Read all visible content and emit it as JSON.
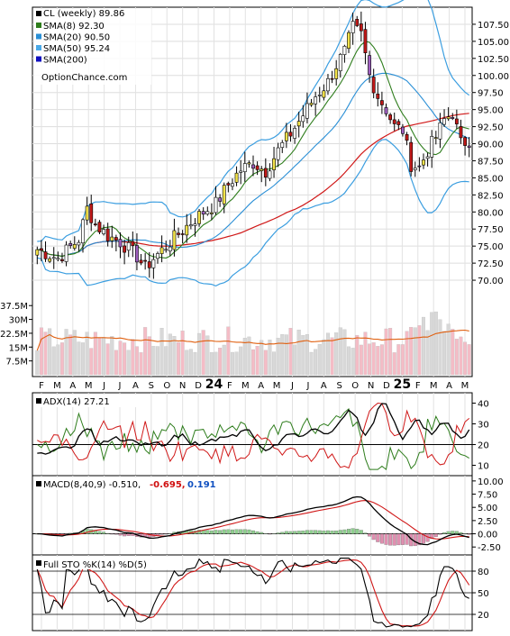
{
  "chart_data": [
    {
      "type": "candlestick",
      "panel": "price",
      "title": "CL (weekly) 89.86",
      "watermark": "OptionChance.com",
      "legend": [
        {
          "label": "SMA(8) 92.30",
          "color": "#2e7d1c"
        },
        {
          "label": "SMA(20) 90.50",
          "color": "#2a8fd6"
        },
        {
          "label": "SMA(50) 95.24",
          "color": "#4aa9e8"
        },
        {
          "label": "SMA(200)",
          "color": "#1010c0"
        }
      ],
      "y_ticks": [
        "107.50",
        "105.00",
        "102.50",
        "100.00",
        "97.50",
        "95.00",
        "92.50",
        "90.00",
        "87.50",
        "85.00",
        "82.50",
        "80.00",
        "77.50",
        "75.00",
        "72.50",
        "70.00"
      ],
      "ylim": [
        67.5,
        110
      ],
      "x_labels": [
        "F",
        "M",
        "A",
        "M",
        "J",
        "J",
        "A",
        "S",
        "O",
        "N",
        "D",
        "24",
        "F",
        "M",
        "A",
        "M",
        "J",
        "J",
        "A",
        "S",
        "O",
        "N",
        "D",
        "25",
        "F",
        "M",
        "A",
        "M"
      ],
      "close_path": [
        [
          0,
          74.5
        ],
        [
          5,
          73.2
        ],
        [
          10,
          76.0
        ],
        [
          12,
          80.5
        ],
        [
          14,
          78.2
        ],
        [
          17,
          76.5
        ],
        [
          20,
          75.6
        ],
        [
          24,
          73.5
        ],
        [
          26,
          71.8
        ],
        [
          28,
          73.2
        ],
        [
          31,
          75.0
        ],
        [
          34,
          76.8
        ],
        [
          37,
          78.5
        ],
        [
          40,
          80.0
        ],
        [
          43,
          81.2
        ],
        [
          46,
          84.0
        ],
        [
          49,
          86.2
        ],
        [
          52,
          87.2
        ],
        [
          55,
          86.0
        ],
        [
          58,
          89.0
        ],
        [
          61,
          91.5
        ],
        [
          64,
          94.2
        ],
        [
          67,
          97.0
        ],
        [
          70,
          99.0
        ],
        [
          72,
          101.5
        ],
        [
          74,
          103.5
        ],
        [
          76,
          107.0
        ],
        [
          78,
          106.0
        ],
        [
          80,
          100.0
        ],
        [
          82,
          97.0
        ],
        [
          84,
          95.0
        ],
        [
          86,
          92.5
        ],
        [
          88,
          92.0
        ],
        [
          90,
          87.0
        ],
        [
          92,
          86.5
        ],
        [
          94,
          89.0
        ],
        [
          96,
          91.0
        ],
        [
          98,
          93.5
        ],
        [
          100,
          94.5
        ],
        [
          102,
          90.0
        ],
        [
          104,
          90.5
        ]
      ],
      "volume_ticks": [
        "37.5M",
        "30M",
        "22.5M",
        "15M",
        "7.5M"
      ]
    },
    {
      "type": "line",
      "panel": "adx",
      "title": "ADX(14) 27.21",
      "y_ticks": [
        "40",
        "30",
        "20",
        "10"
      ],
      "ylim": [
        5,
        45
      ]
    },
    {
      "type": "line",
      "panel": "macd",
      "title": "MACD(8,40,9) -0.510,",
      "values": [
        "-0.695,",
        "0.191"
      ],
      "value_colors": [
        "#d01010",
        "#1050c0"
      ],
      "y_ticks": [
        "10.00",
        "7.50",
        "5.00",
        "2.50",
        "0.00",
        "-2.50"
      ],
      "ylim": [
        -4,
        11
      ]
    },
    {
      "type": "line",
      "panel": "sto",
      "title": "Full STO %K(14) %D(5)",
      "y_ticks": [
        "80",
        "50",
        "20"
      ],
      "ylim": [
        0,
        100
      ]
    }
  ]
}
